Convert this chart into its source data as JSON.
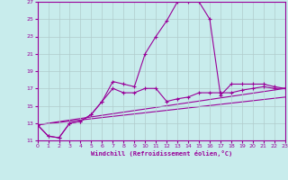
{
  "xlabel": "Windchill (Refroidissement éolien,°C)",
  "background_color": "#c8ecec",
  "line_color": "#990099",
  "grid_color": "#b0cccc",
  "xlim": [
    0,
    23
  ],
  "ylim": [
    11,
    27
  ],
  "yticks": [
    11,
    13,
    15,
    17,
    19,
    21,
    23,
    25,
    27
  ],
  "xticks": [
    0,
    1,
    2,
    3,
    4,
    5,
    6,
    7,
    8,
    9,
    10,
    11,
    12,
    13,
    14,
    15,
    16,
    17,
    18,
    19,
    20,
    21,
    22,
    23
  ],
  "main_x": [
    0,
    1,
    2,
    3,
    4,
    5,
    6,
    7,
    8,
    9,
    10,
    11,
    12,
    13,
    14,
    15,
    16,
    17,
    18,
    19,
    20,
    21,
    22,
    23
  ],
  "main_y": [
    12.8,
    11.5,
    11.3,
    13.0,
    13.2,
    14.0,
    15.5,
    17.8,
    17.5,
    17.2,
    21.0,
    23.0,
    24.8,
    27.0,
    27.0,
    27.0,
    25.0,
    16.2,
    17.5,
    17.5,
    17.5,
    17.5,
    17.2,
    17.0
  ],
  "curve2_x": [
    0,
    1,
    2,
    3,
    4,
    5,
    6,
    7,
    8,
    9,
    10,
    11,
    12,
    13,
    14,
    15,
    16,
    17,
    18,
    19,
    20,
    21,
    22,
    23
  ],
  "curve2_y": [
    12.8,
    11.5,
    11.3,
    13.0,
    13.2,
    14.0,
    15.5,
    17.0,
    16.5,
    16.5,
    17.0,
    17.0,
    15.5,
    15.8,
    16.0,
    16.5,
    16.5,
    16.5,
    16.5,
    16.8,
    17.0,
    17.2,
    17.0,
    17.0
  ],
  "line3_x": [
    0,
    23
  ],
  "line3_y": [
    12.8,
    17.0
  ],
  "line4_x": [
    0,
    23
  ],
  "line4_y": [
    12.8,
    16.0
  ]
}
